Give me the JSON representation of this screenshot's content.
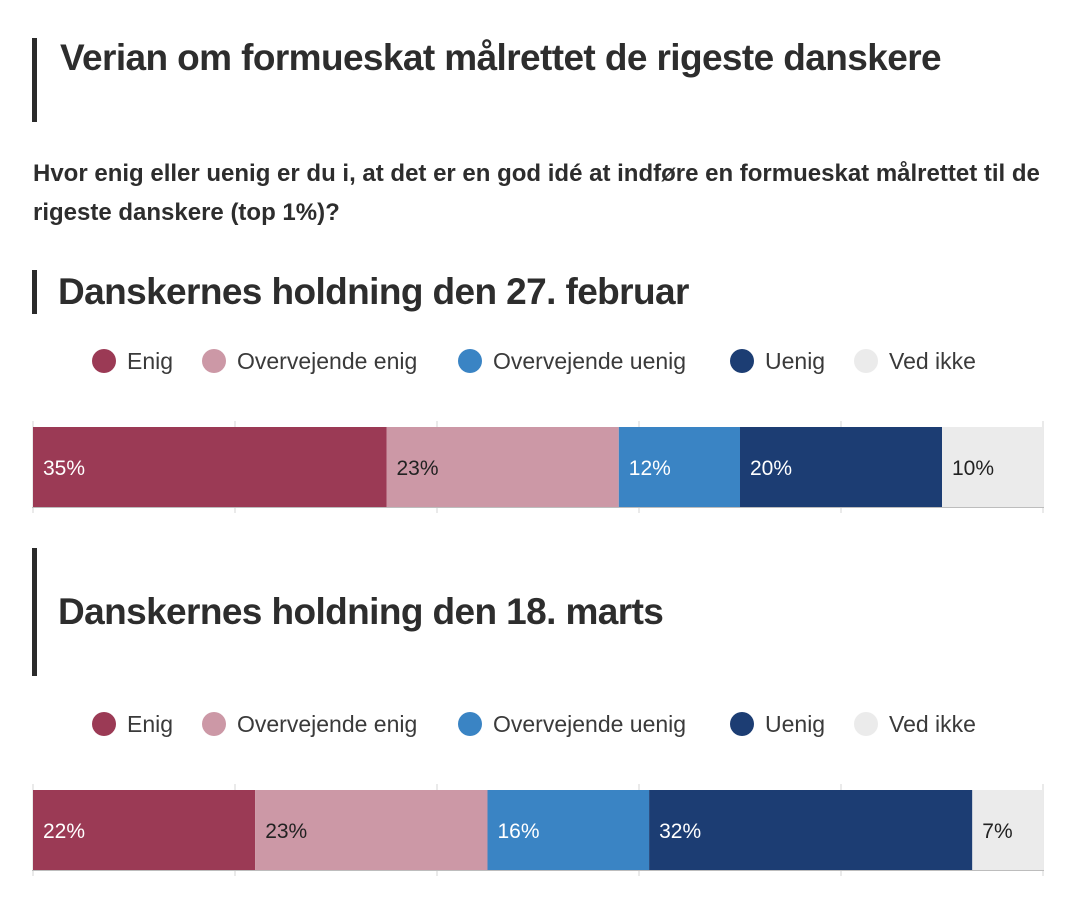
{
  "title": "Verian om formueskat målrettet de rigeste danskere",
  "subtitle": "Hvor enig eller uenig er du i, at det er en god idé at indføre en formueskat målrettet til de rigeste danskere (top 1%)?",
  "colors": {
    "enig": "#9b3a55",
    "overvejende_enig": "#cc98a6",
    "overvejende_uenig": "#3a84c4",
    "uenig": "#1c3d73",
    "ved_ikke": "#ebebeb",
    "accent": "#2b2b2b"
  },
  "chart_data": [
    {
      "type": "bar",
      "orientation": "horizontal-stacked",
      "title": "Danskernes holdning den 27. februar",
      "legend": "top",
      "xlim": [
        0,
        100
      ],
      "series": [
        {
          "name": "Enig",
          "value": 35,
          "label": "35%",
          "color": "#9b3a55",
          "label_color": "#ffffff"
        },
        {
          "name": "Overvejende enig",
          "value": 23,
          "label": "23%",
          "color": "#cc98a6",
          "label_color": "#222222"
        },
        {
          "name": "Overvejende uenig",
          "value": 12,
          "label": "12%",
          "color": "#3a84c4",
          "label_color": "#ffffff"
        },
        {
          "name": "Uenig",
          "value": 20,
          "label": "20%",
          "color": "#1c3d73",
          "label_color": "#ffffff"
        },
        {
          "name": "Ved ikke",
          "value": 10,
          "label": "10%",
          "color": "#ebebeb",
          "label_color": "#222222"
        }
      ]
    },
    {
      "type": "bar",
      "orientation": "horizontal-stacked",
      "title": "Danskernes holdning den 18. marts",
      "legend": "top",
      "xlim": [
        0,
        100
      ],
      "series": [
        {
          "name": "Enig",
          "value": 22,
          "label": "22%",
          "color": "#9b3a55",
          "label_color": "#ffffff"
        },
        {
          "name": "Overvejende enig",
          "value": 23,
          "label": "23%",
          "color": "#cc98a6",
          "label_color": "#222222"
        },
        {
          "name": "Overvejende uenig",
          "value": 16,
          "label": "16%",
          "color": "#3a84c4",
          "label_color": "#ffffff"
        },
        {
          "name": "Uenig",
          "value": 32,
          "label": "32%",
          "color": "#1c3d73",
          "label_color": "#ffffff"
        },
        {
          "name": "Ved ikke",
          "value": 7,
          "label": "7%",
          "color": "#ebebeb",
          "label_color": "#222222"
        }
      ]
    }
  ]
}
